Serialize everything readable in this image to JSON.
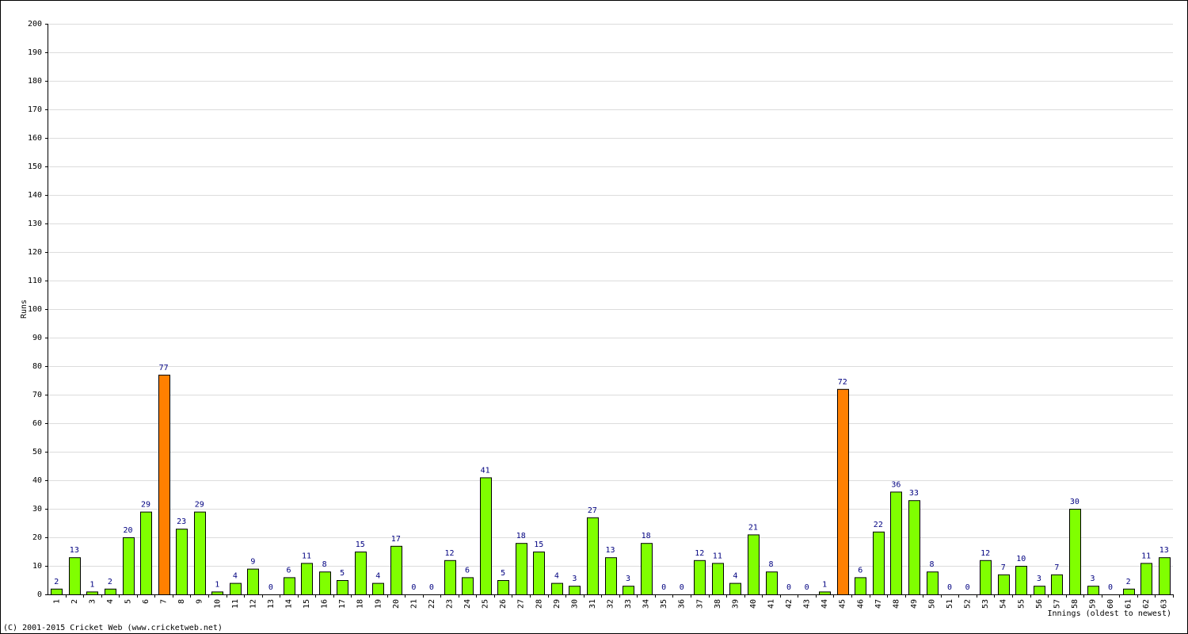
{
  "chart_data": {
    "type": "bar",
    "y_label": "Runs",
    "x_label": "Innings (oldest to newest)",
    "footer": "(C) 2001-2015 Cricket Web (www.cricketweb.net)",
    "categories": [
      "1",
      "2",
      "3",
      "4",
      "5",
      "6",
      "7",
      "8",
      "9",
      "10",
      "11",
      "12",
      "13",
      "14",
      "15",
      "16",
      "17",
      "18",
      "19",
      "20",
      "21",
      "22",
      "23",
      "24",
      "25",
      "26",
      "27",
      "28",
      "29",
      "30",
      "31",
      "32",
      "33",
      "34",
      "35",
      "36",
      "37",
      "38",
      "39",
      "40",
      "41",
      "42",
      "43",
      "44",
      "45",
      "46",
      "47",
      "48",
      "49",
      "50",
      "51",
      "52",
      "53",
      "54",
      "55",
      "56",
      "57",
      "58",
      "59",
      "60",
      "61",
      "62",
      "63"
    ],
    "values": [
      2,
      13,
      1,
      2,
      20,
      29,
      77,
      23,
      29,
      1,
      4,
      9,
      0,
      6,
      11,
      8,
      5,
      15,
      4,
      17,
      0,
      0,
      12,
      6,
      41,
      5,
      18,
      15,
      4,
      3,
      27,
      13,
      3,
      18,
      0,
      0,
      12,
      11,
      4,
      21,
      8,
      0,
      0,
      1,
      72,
      6,
      22,
      36,
      33,
      8,
      0,
      0,
      12,
      7,
      10,
      3,
      7,
      30,
      3,
      0,
      2,
      11,
      13
    ],
    "bar_colors": [
      "#80ff00",
      "#80ff00",
      "#80ff00",
      "#80ff00",
      "#80ff00",
      "#80ff00",
      "#ff8000",
      "#80ff00",
      "#80ff00",
      "#80ff00",
      "#80ff00",
      "#80ff00",
      "#80ff00",
      "#80ff00",
      "#80ff00",
      "#80ff00",
      "#80ff00",
      "#80ff00",
      "#80ff00",
      "#80ff00",
      "#80ff00",
      "#80ff00",
      "#80ff00",
      "#80ff00",
      "#80ff00",
      "#80ff00",
      "#80ff00",
      "#80ff00",
      "#80ff00",
      "#80ff00",
      "#80ff00",
      "#80ff00",
      "#80ff00",
      "#80ff00",
      "#80ff00",
      "#80ff00",
      "#80ff00",
      "#80ff00",
      "#80ff00",
      "#80ff00",
      "#80ff00",
      "#80ff00",
      "#80ff00",
      "#80ff00",
      "#ff8000",
      "#80ff00",
      "#80ff00",
      "#80ff00",
      "#80ff00",
      "#80ff00",
      "#80ff00",
      "#80ff00",
      "#80ff00",
      "#80ff00",
      "#80ff00",
      "#80ff00",
      "#80ff00",
      "#80ff00",
      "#80ff00",
      "#80ff00",
      "#80ff00",
      "#80ff00",
      "#80ff00"
    ],
    "ylim": [
      0,
      200
    ],
    "yticks": [
      0,
      10,
      20,
      30,
      40,
      50,
      60,
      70,
      80,
      90,
      100,
      110,
      120,
      130,
      140,
      150,
      160,
      170,
      180,
      190,
      200
    ],
    "grid": true
  }
}
